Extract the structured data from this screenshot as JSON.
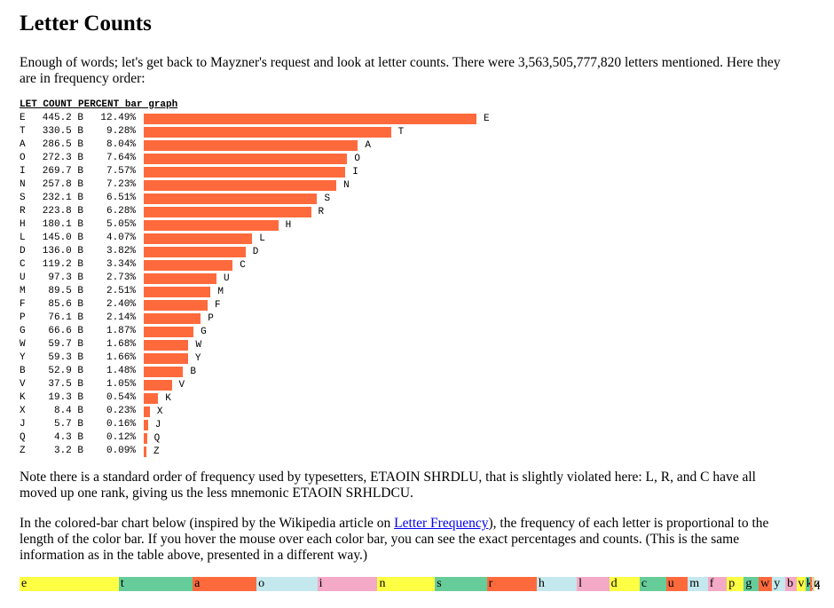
{
  "title": "Letter Counts",
  "intro": "Enough of words; let's get back to Mayzner's request and look at letter counts. There were 3,563,505,777,820 letters mentioned. Here they are in frequency order:",
  "table": {
    "header": "LET COUNT PERCENT bar graph",
    "bar_color": "#ff6a3d",
    "rows": [
      {
        "letter": "E",
        "count": "445.2 B",
        "percent": "12.49%"
      },
      {
        "letter": "T",
        "count": "330.5 B",
        "percent": "9.28%"
      },
      {
        "letter": "A",
        "count": "286.5 B",
        "percent": "8.04%"
      },
      {
        "letter": "O",
        "count": "272.3 B",
        "percent": "7.64%"
      },
      {
        "letter": "I",
        "count": "269.7 B",
        "percent": "7.57%"
      },
      {
        "letter": "N",
        "count": "257.8 B",
        "percent": "7.23%"
      },
      {
        "letter": "S",
        "count": "232.1 B",
        "percent": "6.51%"
      },
      {
        "letter": "R",
        "count": "223.8 B",
        "percent": "6.28%"
      },
      {
        "letter": "H",
        "count": "180.1 B",
        "percent": "5.05%"
      },
      {
        "letter": "L",
        "count": "145.0 B",
        "percent": "4.07%"
      },
      {
        "letter": "D",
        "count": "136.0 B",
        "percent": "3.82%"
      },
      {
        "letter": "C",
        "count": "119.2 B",
        "percent": "3.34%"
      },
      {
        "letter": "U",
        "count": "97.3 B",
        "percent": "2.73%"
      },
      {
        "letter": "M",
        "count": "89.5 B",
        "percent": "2.51%"
      },
      {
        "letter": "F",
        "count": "85.6 B",
        "percent": "2.40%"
      },
      {
        "letter": "P",
        "count": "76.1 B",
        "percent": "2.14%"
      },
      {
        "letter": "G",
        "count": "66.6 B",
        "percent": "1.87%"
      },
      {
        "letter": "W",
        "count": "59.7 B",
        "percent": "1.68%"
      },
      {
        "letter": "Y",
        "count": "59.3 B",
        "percent": "1.66%"
      },
      {
        "letter": "B",
        "count": "52.9 B",
        "percent": "1.48%"
      },
      {
        "letter": "V",
        "count": "37.5 B",
        "percent": "1.05%"
      },
      {
        "letter": "K",
        "count": "19.3 B",
        "percent": "0.54%"
      },
      {
        "letter": "X",
        "count": "8.4 B",
        "percent": "0.23%"
      },
      {
        "letter": "J",
        "count": "5.7 B",
        "percent": "0.16%"
      },
      {
        "letter": "Q",
        "count": "4.3 B",
        "percent": "0.12%"
      },
      {
        "letter": "Z",
        "count": "3.2 B",
        "percent": "0.09%"
      }
    ]
  },
  "note": "Note there is a standard order of frequency used by typesetters, ETAOIN SHRDLU, that is slightly violated here: L, R, and C have all moved up one rank, giving us the less mnemonic ETAOIN SRHLDCU.",
  "colored_intro": {
    "before": "In the colored-bar chart below (inspired by the Wikipedia article on ",
    "link_text": "Letter Frequency",
    "after": "), the frequency of each letter is proportional to the length of the color bar. If you hover the mouse over each color bar, you can see the exact percentages and counts. (This is the same information as in the table above, presented in a different way.)"
  },
  "colored_bar": {
    "palette": [
      "#ffff44",
      "#66cc99",
      "#ff6a3d",
      "#c4e8ee",
      "#f4aac6"
    ],
    "segments": [
      {
        "letter": "e",
        "percent": 12.49
      },
      {
        "letter": "t",
        "percent": 9.28
      },
      {
        "letter": "a",
        "percent": 8.04
      },
      {
        "letter": "o",
        "percent": 7.64
      },
      {
        "letter": "i",
        "percent": 7.57
      },
      {
        "letter": "n",
        "percent": 7.23
      },
      {
        "letter": "s",
        "percent": 6.51
      },
      {
        "letter": "r",
        "percent": 6.28
      },
      {
        "letter": "h",
        "percent": 5.05
      },
      {
        "letter": "l",
        "percent": 4.07
      },
      {
        "letter": "d",
        "percent": 3.82
      },
      {
        "letter": "c",
        "percent": 3.34
      },
      {
        "letter": "u",
        "percent": 2.73
      },
      {
        "letter": "m",
        "percent": 2.51
      },
      {
        "letter": "f",
        "percent": 2.4
      },
      {
        "letter": "p",
        "percent": 2.14
      },
      {
        "letter": "g",
        "percent": 1.87
      },
      {
        "letter": "w",
        "percent": 1.68
      },
      {
        "letter": "y",
        "percent": 1.66
      },
      {
        "letter": "b",
        "percent": 1.48
      },
      {
        "letter": "v",
        "percent": 1.05
      },
      {
        "letter": "k",
        "percent": 0.54
      },
      {
        "letter": "x",
        "percent": 0.23
      },
      {
        "letter": "j",
        "percent": 0.16
      },
      {
        "letter": "q",
        "percent": 0.12
      },
      {
        "letter": "z",
        "percent": 0.09
      }
    ]
  }
}
